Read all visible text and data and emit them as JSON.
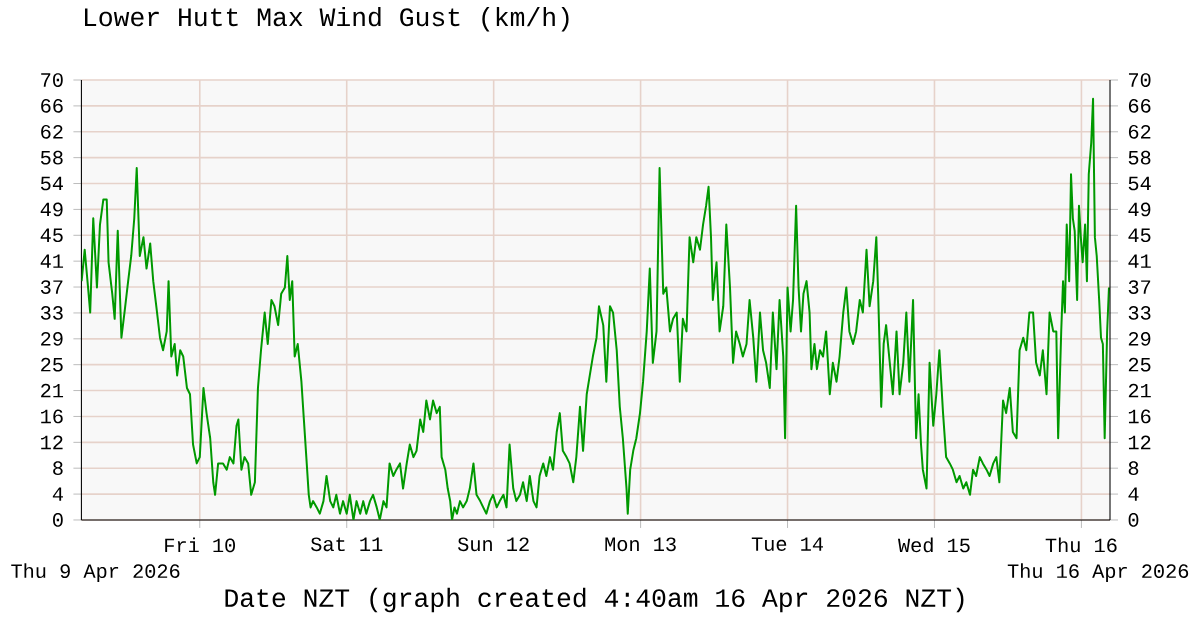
{
  "chart_data": {
    "type": "line",
    "title": "Lower Hutt Max Wind Gust (km/h)",
    "xlabel": "Date NZT (graph created 4:40am 16 Apr 2026 NZT)",
    "annotations": [
      "Thu 9 Apr 2026",
      "Thu 16 Apr 2026"
    ],
    "xlim": [
      "2026-04-09T04:40",
      "2026-04-16T04:40"
    ],
    "xticks": [
      {
        "value": "2026-04-10",
        "label": "Fri 10"
      },
      {
        "value": "2026-04-11",
        "label": "Sat 11"
      },
      {
        "value": "2026-04-12",
        "label": "Sun 12"
      },
      {
        "value": "2026-04-13",
        "label": "Mon 13"
      },
      {
        "value": "2026-04-14",
        "label": "Tue 14"
      },
      {
        "value": "2026-04-15",
        "label": "Wed 15"
      },
      {
        "value": "2026-04-16",
        "label": "Thu 16"
      }
    ],
    "ylim": [
      0,
      70
    ],
    "yticks": [
      0,
      {
        "value": 4.12,
        "label": "4"
      },
      {
        "value": 8.24,
        "label": "8"
      },
      {
        "value": 12.35,
        "label": "12"
      },
      {
        "value": 16.47,
        "label": "16"
      },
      {
        "value": 20.59,
        "label": "21"
      },
      {
        "value": 24.71,
        "label": "25"
      },
      {
        "value": 28.82,
        "label": "29"
      },
      {
        "value": 32.94,
        "label": "33"
      },
      {
        "value": 37.06,
        "label": "37"
      },
      {
        "value": 41.18,
        "label": "41"
      },
      {
        "value": 45.29,
        "label": "45"
      },
      {
        "value": 49.41,
        "label": "49"
      },
      {
        "value": 53.53,
        "label": "54"
      },
      {
        "value": 57.65,
        "label": "58"
      },
      {
        "value": 61.76,
        "label": "62"
      },
      {
        "value": 65.88,
        "label": "66"
      },
      70
    ],
    "y2lim": [
      0,
      70
    ],
    "y2ticks": [
      0,
      {
        "value": 4.12,
        "label": "4"
      },
      {
        "value": 8.24,
        "label": "8"
      },
      {
        "value": 12.35,
        "label": "12"
      },
      {
        "value": 16.47,
        "label": "16"
      },
      {
        "value": 20.59,
        "label": "21"
      },
      {
        "value": 24.71,
        "label": "25"
      },
      {
        "value": 28.82,
        "label": "29"
      },
      {
        "value": 32.94,
        "label": "33"
      },
      {
        "value": 37.06,
        "label": "37"
      },
      {
        "value": 41.18,
        "label": "41"
      },
      {
        "value": 45.29,
        "label": "45"
      },
      {
        "value": 49.41,
        "label": "49"
      },
      {
        "value": 53.53,
        "label": "54"
      },
      {
        "value": 57.65,
        "label": "58"
      },
      {
        "value": 61.76,
        "label": "62"
      },
      {
        "value": 65.88,
        "label": "66"
      },
      70
    ],
    "grid": true,
    "marker": "none",
    "line_style": "solid",
    "series": [
      {
        "color": "#009900",
        "x": [
          "2026-04-09T04:42",
          "2026-04-09T05:12",
          "2026-04-09T05:45",
          "2026-04-09T06:06",
          "2026-04-09T06:36",
          "2026-04-09T07:12",
          "2026-04-09T07:42",
          "2026-04-09T08:15",
          "2026-04-09T08:48",
          "2026-04-09T09:06",
          "2026-04-09T09:42",
          "2026-04-09T10:06",
          "2026-04-09T10:36",
          "2026-04-09T11:12",
          "2026-04-09T11:42",
          "2026-04-09T12:18",
          "2026-04-09T12:48",
          "2026-04-09T13:18",
          "2026-04-09T13:42",
          "2026-04-09T14:12",
          "2026-04-09T14:48",
          "2026-04-09T15:18",
          "2026-04-09T15:54",
          "2026-04-09T16:24",
          "2026-04-09T16:54",
          "2026-04-09T17:30",
          "2026-04-09T18:00",
          "2026-04-09T18:36",
          "2026-04-09T18:54",
          "2026-04-09T19:21",
          "2026-04-09T19:54",
          "2026-04-09T20:18",
          "2026-04-09T20:48",
          "2026-04-09T21:18",
          "2026-04-09T21:54",
          "2026-04-09T22:24",
          "2026-04-09T22:54",
          "2026-04-09T23:30",
          "2026-04-10T00:00",
          "2026-04-10T00:36",
          "2026-04-10T01:06",
          "2026-04-10T01:42",
          "2026-04-10T02:12",
          "2026-04-10T02:30",
          "2026-04-10T03:00",
          "2026-04-10T03:48",
          "2026-04-10T04:24",
          "2026-04-10T04:54",
          "2026-04-10T05:30",
          "2026-04-10T06:00",
          "2026-04-10T06:18",
          "2026-04-10T06:48",
          "2026-04-10T07:18",
          "2026-04-10T07:54",
          "2026-04-10T08:24",
          "2026-04-10T09:00",
          "2026-04-10T09:30",
          "2026-04-10T10:00",
          "2026-04-10T10:36",
          "2026-04-10T11:06",
          "2026-04-10T11:42",
          "2026-04-10T12:12",
          "2026-04-10T12:48",
          "2026-04-10T13:18",
          "2026-04-10T13:54",
          "2026-04-10T14:18",
          "2026-04-10T14:42",
          "2026-04-10T15:06",
          "2026-04-10T15:30",
          "2026-04-10T16:00",
          "2026-04-10T16:36",
          "2026-04-10T17:00",
          "2026-04-10T17:24",
          "2026-04-10T17:48",
          "2026-04-10T18:06",
          "2026-04-10T18:30",
          "2026-04-10T19:06",
          "2026-04-10T19:36",
          "2026-04-10T20:12",
          "2026-04-10T20:42",
          "2026-04-10T21:18",
          "2026-04-10T21:48",
          "2026-04-10T22:18",
          "2026-04-10T22:54",
          "2026-04-10T23:24",
          "2026-04-11T00:00",
          "2026-04-11T00:30",
          "2026-04-11T01:06",
          "2026-04-11T01:36",
          "2026-04-11T02:12",
          "2026-04-11T02:42",
          "2026-04-11T03:12",
          "2026-04-11T03:48",
          "2026-04-11T04:18",
          "2026-04-11T04:54",
          "2026-04-11T05:24",
          "2026-04-11T06:00",
          "2026-04-11T06:30",
          "2026-04-11T07:00",
          "2026-04-11T07:36",
          "2026-04-11T08:06",
          "2026-04-11T08:42",
          "2026-04-11T09:12",
          "2026-04-11T09:48",
          "2026-04-11T10:18",
          "2026-04-11T10:54",
          "2026-04-11T11:24",
          "2026-04-11T12:00",
          "2026-04-11T12:30",
          "2026-04-11T13:00",
          "2026-04-11T13:36",
          "2026-04-11T14:06",
          "2026-04-11T14:42",
          "2026-04-11T15:12",
          "2026-04-11T15:30",
          "2026-04-11T16:06",
          "2026-04-11T16:30",
          "2026-04-11T16:54",
          "2026-04-11T17:12",
          "2026-04-11T17:36",
          "2026-04-11T18:00",
          "2026-04-11T18:30",
          "2026-04-11T19:00",
          "2026-04-11T19:36",
          "2026-04-11T20:06",
          "2026-04-11T20:42",
          "2026-04-11T21:12",
          "2026-04-11T21:48",
          "2026-04-11T22:18",
          "2026-04-11T22:48",
          "2026-04-11T23:24",
          "2026-04-11T23:54",
          "2026-04-12T00:30",
          "2026-04-12T01:00",
          "2026-04-12T01:36",
          "2026-04-12T02:06",
          "2026-04-12T02:36",
          "2026-04-12T03:12",
          "2026-04-12T03:42",
          "2026-04-12T04:18",
          "2026-04-12T04:48",
          "2026-04-12T05:24",
          "2026-04-12T05:54",
          "2026-04-12T06:30",
          "2026-04-12T07:00",
          "2026-04-12T07:30",
          "2026-04-12T08:06",
          "2026-04-12T08:36",
          "2026-04-12T09:12",
          "2026-04-12T09:42",
          "2026-04-12T10:18",
          "2026-04-12T10:48",
          "2026-04-12T11:18",
          "2026-04-12T11:54",
          "2026-04-12T12:24",
          "2026-04-12T13:00",
          "2026-04-12T13:30",
          "2026-04-12T14:06",
          "2026-04-12T14:36",
          "2026-04-12T15:12",
          "2026-04-12T15:42",
          "2026-04-12T16:12",
          "2026-04-12T16:48",
          "2026-04-12T17:12",
          "2026-04-12T17:54",
          "2026-04-12T18:24",
          "2026-04-12T19:00",
          "2026-04-12T19:30",
          "2026-04-12T20:06",
          "2026-04-12T20:36",
          "2026-04-12T21:06",
          "2026-04-12T21:42",
          "2026-04-12T21:54",
          "2026-04-12T22:18",
          "2026-04-12T22:48",
          "2026-04-12T23:18",
          "2026-04-12T23:54",
          "2026-04-13T00:24",
          "2026-04-13T01:00",
          "2026-04-13T01:30",
          "2026-04-13T02:00",
          "2026-04-13T02:36",
          "2026-04-13T03:06",
          "2026-04-13T03:42",
          "2026-04-13T04:12",
          "2026-04-13T04:48",
          "2026-04-13T05:18",
          "2026-04-13T05:54",
          "2026-04-13T06:24",
          "2026-04-13T06:54",
          "2026-04-13T07:30",
          "2026-04-13T08:00",
          "2026-04-13T08:36",
          "2026-04-13T09:06",
          "2026-04-13T09:42",
          "2026-04-13T10:12",
          "2026-04-13T10:42",
          "2026-04-13T11:06",
          "2026-04-13T11:30",
          "2026-04-13T11:48",
          "2026-04-13T12:24",
          "2026-04-13T12:54",
          "2026-04-13T13:30",
          "2026-04-13T14:00",
          "2026-04-13T14:36",
          "2026-04-13T15:06",
          "2026-04-13T15:36",
          "2026-04-13T16:12",
          "2026-04-13T16:42",
          "2026-04-13T17:18",
          "2026-04-13T17:48",
          "2026-04-13T18:24",
          "2026-04-13T18:54",
          "2026-04-13T19:30",
          "2026-04-13T20:00",
          "2026-04-13T20:30",
          "2026-04-13T21:06",
          "2026-04-13T21:36",
          "2026-04-13T22:12",
          "2026-04-13T22:42",
          "2026-04-13T23:18",
          "2026-04-13T23:36",
          "2026-04-14T00:00",
          "2026-04-14T00:30",
          "2026-04-14T00:54",
          "2026-04-14T01:24",
          "2026-04-14T01:48",
          "2026-04-14T02:12",
          "2026-04-14T02:36",
          "2026-04-14T03:06",
          "2026-04-14T03:36",
          "2026-04-14T03:54",
          "2026-04-14T04:24",
          "2026-04-14T04:48",
          "2026-04-14T05:18",
          "2026-04-14T05:48",
          "2026-04-14T06:18",
          "2026-04-14T06:54",
          "2026-04-14T07:24",
          "2026-04-14T08:00",
          "2026-04-14T08:30",
          "2026-04-14T09:06",
          "2026-04-14T09:36",
          "2026-04-14T10:06",
          "2026-04-14T10:42",
          "2026-04-14T11:12",
          "2026-04-14T11:48",
          "2026-04-14T12:18",
          "2026-04-14T12:54",
          "2026-04-14T13:24",
          "2026-04-14T14:00",
          "2026-04-14T14:30",
          "2026-04-14T14:48",
          "2026-04-14T15:18",
          "2026-04-14T15:42",
          "2026-04-14T16:06",
          "2026-04-14T16:42",
          "2026-04-14T17:12",
          "2026-04-14T17:48",
          "2026-04-14T18:18",
          "2026-04-14T18:54",
          "2026-04-14T19:24",
          "2026-04-14T19:54",
          "2026-04-14T20:30",
          "2026-04-14T21:00",
          "2026-04-14T21:24",
          "2026-04-14T21:48",
          "2026-04-14T22:06",
          "2026-04-14T22:42",
          "2026-04-14T23:12",
          "2026-04-14T23:48",
          "2026-04-15T00:18",
          "2026-04-15T00:48",
          "2026-04-15T01:24",
          "2026-04-15T01:54",
          "2026-04-15T02:30",
          "2026-04-15T03:00",
          "2026-04-15T03:36",
          "2026-04-15T04:06",
          "2026-04-15T04:42",
          "2026-04-15T05:12",
          "2026-04-15T05:48",
          "2026-04-15T06:18",
          "2026-04-15T06:48",
          "2026-04-15T07:24",
          "2026-04-15T07:54",
          "2026-04-15T08:30",
          "2026-04-15T09:00",
          "2026-04-15T09:36",
          "2026-04-15T10:06",
          "2026-04-15T10:36",
          "2026-04-15T11:12",
          "2026-04-15T11:42",
          "2026-04-15T12:18",
          "2026-04-15T12:48",
          "2026-04-15T13:24",
          "2026-04-15T13:54",
          "2026-04-15T14:30",
          "2026-04-15T15:00",
          "2026-04-15T15:30",
          "2026-04-15T16:06",
          "2026-04-15T16:36",
          "2026-04-15T17:12",
          "2026-04-15T17:42",
          "2026-04-15T18:18",
          "2026-04-15T18:48",
          "2026-04-15T19:24",
          "2026-04-15T19:54",
          "2026-04-15T20:12",
          "2026-04-15T20:42",
          "2026-04-15T21:00",
          "2026-04-15T21:18",
          "2026-04-15T21:36",
          "2026-04-15T22:00",
          "2026-04-15T22:18",
          "2026-04-15T22:36",
          "2026-04-15T22:54",
          "2026-04-15T23:18",
          "2026-04-15T23:36",
          "2026-04-15T23:54",
          "2026-04-16T00:12",
          "2026-04-16T00:36",
          "2026-04-16T00:54",
          "2026-04-16T01:12",
          "2026-04-16T01:36",
          "2026-04-16T01:54",
          "2026-04-16T02:12",
          "2026-04-16T02:30",
          "2026-04-16T02:54",
          "2026-04-16T03:12",
          "2026-04-16T03:30",
          "2026-04-16T03:48",
          "2026-04-16T04:12",
          "2026-04-16T04:30"
        ],
        "values": [
          38,
          43,
          37,
          33,
          48,
          37,
          47,
          51,
          51,
          41,
          36,
          32,
          46,
          29,
          33,
          38,
          42,
          48,
          56,
          42,
          45,
          40,
          44,
          38,
          34,
          29,
          27,
          30,
          38,
          26,
          28,
          23,
          27,
          26,
          21,
          20,
          12,
          9,
          10,
          21,
          17,
          13,
          6,
          4,
          9,
          9,
          8,
          10,
          9,
          15,
          16,
          8,
          10,
          9,
          4,
          6,
          21,
          27,
          33,
          28,
          35,
          34,
          31,
          36,
          37,
          42,
          35,
          38,
          26,
          28,
          22,
          16,
          10,
          4,
          2,
          3,
          2,
          1,
          3,
          7,
          3,
          2,
          4,
          1,
          3,
          1,
          4,
          0,
          3,
          1,
          3,
          1,
          3,
          4,
          2,
          0,
          3,
          2,
          9,
          7,
          8,
          9,
          5,
          9,
          12,
          10,
          11,
          16,
          14,
          19,
          16,
          19,
          17,
          18,
          10,
          8,
          5,
          3,
          0,
          2,
          1,
          3,
          2,
          3,
          5,
          9,
          4,
          3,
          2,
          1,
          3,
          4,
          2,
          3,
          4,
          2,
          12,
          5,
          3,
          4,
          6,
          3,
          7,
          3,
          2,
          7,
          9,
          7,
          10,
          8,
          14,
          17,
          11,
          10,
          9,
          6,
          10,
          18,
          11,
          20,
          23,
          26,
          29,
          34,
          31,
          22,
          34,
          33,
          27,
          18,
          13,
          5,
          1,
          8,
          11,
          13,
          17,
          22,
          30,
          40,
          25,
          30,
          56,
          36,
          37,
          30,
          32,
          33,
          22,
          32,
          30,
          45,
          41,
          45,
          43,
          47,
          50,
          53,
          45,
          35,
          41,
          30,
          34,
          47,
          37,
          25,
          30,
          28,
          26,
          28,
          35,
          29,
          22,
          33,
          27,
          25,
          21,
          33,
          24,
          35,
          26,
          13,
          37,
          30,
          35,
          50,
          37,
          30,
          36,
          38,
          33,
          24,
          28,
          24,
          27,
          26,
          30,
          20,
          25,
          22,
          26,
          33,
          37,
          30,
          28,
          30,
          35,
          33,
          43,
          34,
          38,
          45,
          36,
          18,
          28,
          31,
          25,
          20,
          30,
          20,
          25,
          33,
          22,
          35,
          13,
          20,
          12,
          8,
          5,
          25,
          15,
          20,
          27,
          17,
          10,
          9,
          8,
          6,
          7,
          5,
          6,
          4,
          8,
          7,
          10,
          9,
          8,
          7,
          9,
          10,
          6,
          19,
          17,
          21,
          14,
          13,
          27,
          29,
          27,
          33,
          33,
          25,
          23,
          27,
          20,
          33,
          30,
          30,
          13,
          30,
          38,
          33,
          47,
          38,
          55,
          48,
          46,
          35,
          50,
          45,
          41,
          47,
          38,
          55,
          60,
          67,
          45,
          42,
          35,
          29,
          28,
          13,
          30,
          37
        ]
      }
    ]
  }
}
